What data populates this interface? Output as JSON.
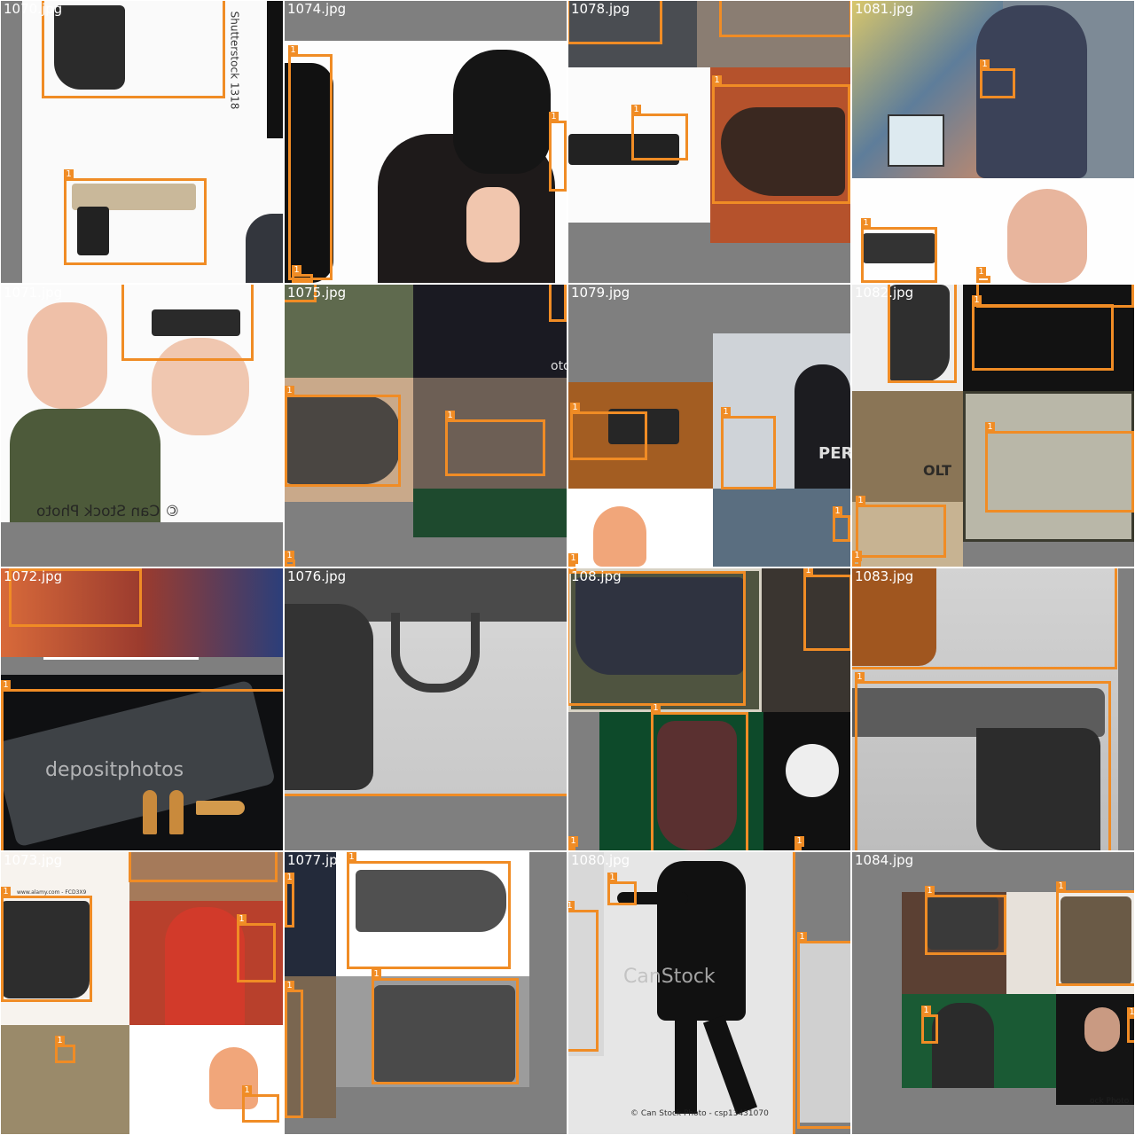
{
  "mosaic": {
    "box_color": "#f08c25",
    "background_color": "#7f7f7f",
    "tiles": [
      {
        "filename": "1070.jpg",
        "class_tag": "1",
        "watermarks": [
          "Shutterstock 1318"
        ]
      },
      {
        "filename": "1074.jpg",
        "class_tag": "1",
        "watermarks": []
      },
      {
        "filename": "1078.jpg",
        "class_tag": "1",
        "watermarks": []
      },
      {
        "filename": "1081.jpg",
        "class_tag": "1",
        "watermarks": []
      },
      {
        "filename": "1071.jpg",
        "class_tag": "1",
        "watermarks": [
          "© Can Stock Photo"
        ]
      },
      {
        "filename": "1075.jpg",
        "class_tag": "1",
        "watermarks": [
          "oto"
        ]
      },
      {
        "filename": "1079.jpg",
        "class_tag": "1",
        "watermarks": [
          "PERS DEF"
        ]
      },
      {
        "filename": "1082.jpg",
        "class_tag": "1",
        "watermarks": [
          "OLT"
        ]
      },
      {
        "filename": "1072.jpg",
        "class_tag": "1",
        "watermarks": [
          "depositphotos"
        ]
      },
      {
        "filename": "1076.jpg",
        "class_tag": "1",
        "watermarks": []
      },
      {
        "filename": "108.jpg",
        "class_tag": "1",
        "watermarks": []
      },
      {
        "filename": "1083.jpg",
        "class_tag": "1",
        "watermarks": []
      },
      {
        "filename": "1073.jpg",
        "class_tag": "1",
        "watermarks": [
          "www.alamy.com - FCD3X9"
        ]
      },
      {
        "filename": "1077.jpg",
        "class_tag": "1",
        "watermarks": []
      },
      {
        "filename": "1080.jpg",
        "class_tag": "1",
        "watermarks": [
          "CanStock",
          "© Can Stock Photo - csp13431070"
        ]
      },
      {
        "filename": "1084.jpg",
        "class_tag": "1",
        "watermarks": [
          "ock Photo"
        ]
      }
    ]
  }
}
